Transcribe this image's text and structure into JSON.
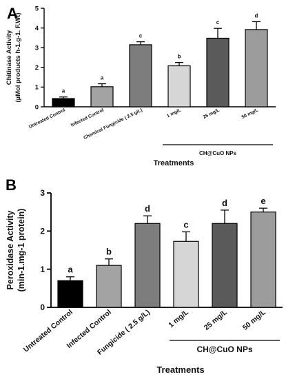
{
  "chart_data": [
    {
      "panel": "A",
      "type": "bar",
      "ylabel": "Chitinase Activity (µMol products h-1.g-1. F.Wt)",
      "ylabel_lines": [
        "Chitinase Activity",
        "(µMol products h-1.g-1. F.Wt)"
      ],
      "xlabel": "Treatments",
      "ylim": [
        0,
        5
      ],
      "yticks": [
        0,
        1,
        2,
        3,
        4,
        5
      ],
      "categories": [
        "Untreated Control",
        "Infected Control",
        "Chemical Fungicide ( 2.5 g/L)",
        "1 mg/L",
        "25 mg/L",
        "50 mg/L"
      ],
      "values": [
        0.42,
        1.02,
        3.15,
        2.08,
        3.48,
        3.92
      ],
      "errors": [
        0.08,
        0.15,
        0.15,
        0.17,
        0.5,
        0.4
      ],
      "letters": [
        "a",
        "a",
        "c",
        "b",
        "c",
        "d"
      ],
      "colors": [
        "#000000",
        "#a3a3a3",
        "#7d7d7d",
        "#d6d6d6",
        "#5a5a5a",
        "#9c9c9c"
      ],
      "group_label": "CH@CuO NPs",
      "group_span": [
        3,
        5
      ]
    },
    {
      "panel": "B",
      "type": "bar",
      "ylabel": "Peroxidase Activity (min-1.mg-1 protein)",
      "ylabel_lines": [
        "Peroxidase Activity",
        "(min-1.mg-1 protein)"
      ],
      "xlabel": "Treatments",
      "ylim": [
        0,
        3
      ],
      "yticks": [
        0,
        1,
        2,
        3
      ],
      "categories": [
        "Untreated Control",
        "Infected Control",
        "Fungicide ( 2.5 g/L)",
        "1 mg/L",
        "25 mg/L",
        "50 mg/L"
      ],
      "values": [
        0.7,
        1.1,
        2.2,
        1.73,
        2.2,
        2.5
      ],
      "errors": [
        0.1,
        0.17,
        0.2,
        0.25,
        0.35,
        0.1
      ],
      "letters": [
        "a",
        "b",
        "d",
        "c",
        "d",
        "e"
      ],
      "colors": [
        "#000000",
        "#a3a3a3",
        "#7d7d7d",
        "#d6d6d6",
        "#5a5a5a",
        "#9c9c9c"
      ],
      "group_label": "CH@CuO NPs",
      "group_span": [
        3,
        5
      ]
    }
  ]
}
